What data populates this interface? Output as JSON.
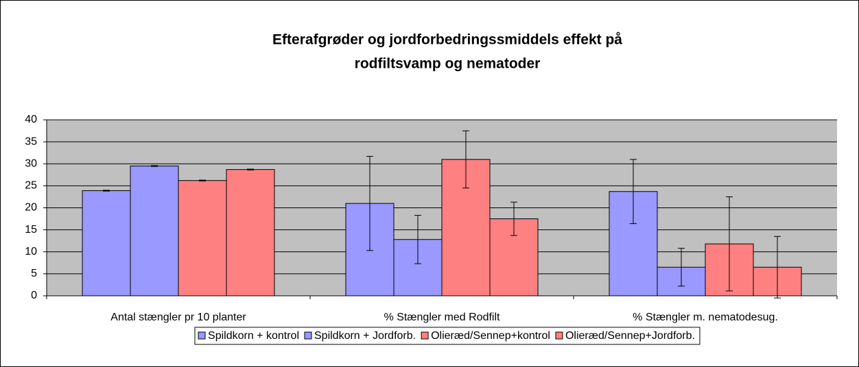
{
  "chart_data": {
    "type": "bar",
    "title": [
      "Efterafgrøder og jordforbedringssmiddels effekt på",
      "rodfiltsvamp og nematoder"
    ],
    "categories": [
      "Antal stængler pr 10 planter",
      "% Stængler med Rodfilt",
      "% Stængler m. nematodesug."
    ],
    "series": [
      {
        "name": "Spildkorn + kontrol",
        "color": "#9999ff",
        "values": [
          23.9,
          21.0,
          23.7
        ],
        "errors": [
          0.1,
          10.7,
          7.3
        ]
      },
      {
        "name": "Spildkorn + Jordforb.",
        "color": "#9999ff",
        "values": [
          29.5,
          12.8,
          6.5
        ],
        "errors": [
          0.1,
          5.5,
          4.3
        ]
      },
      {
        "name": "Olieræd/Sennep+kontrol",
        "color": "#ff8080",
        "values": [
          26.2,
          31.0,
          11.8
        ],
        "errors": [
          0.1,
          6.5,
          10.7
        ]
      },
      {
        "name": "Olieræd/Sennep+Jordforb.",
        "color": "#ff8080",
        "values": [
          28.7,
          17.5,
          6.5
        ],
        "errors": [
          0.1,
          3.8,
          7.0
        ]
      }
    ],
    "ylim": [
      0,
      40
    ],
    "yticks": [
      0,
      5,
      10,
      15,
      20,
      25,
      30,
      35,
      40
    ],
    "grid": true,
    "legend": "bottom"
  }
}
